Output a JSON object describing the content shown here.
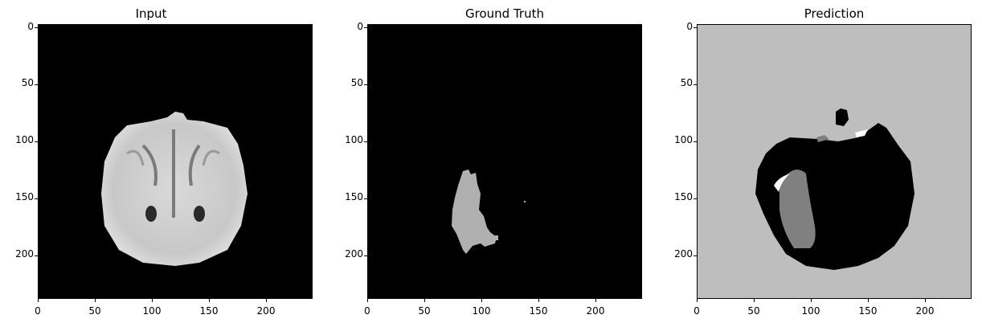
{
  "panels": [
    {
      "title": "Input"
    },
    {
      "title": "Ground Truth"
    },
    {
      "title": "Prediction"
    }
  ],
  "axis": {
    "y_ticks": [
      "0",
      "50",
      "100",
      "150",
      "200"
    ],
    "x_ticks": [
      "0",
      "50",
      "100",
      "150",
      "200"
    ]
  },
  "colors": {
    "background": "#000000",
    "gt_tumor": "#b0b0b0",
    "pred_background": "#bebebe",
    "pred_region": "#000000",
    "pred_class2": "#808080"
  }
}
